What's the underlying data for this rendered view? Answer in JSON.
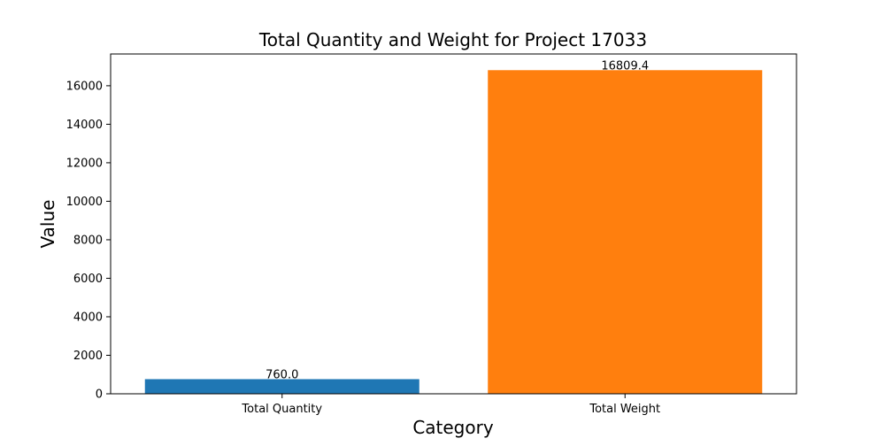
{
  "chart_data": {
    "type": "bar",
    "title": "Total Quantity and Weight for Project 17033",
    "xlabel": "Category",
    "ylabel": "Value",
    "categories": [
      "Total Quantity",
      "Total Weight"
    ],
    "values": [
      760.0,
      16809.4
    ],
    "data_labels": [
      "760.0",
      "16809.4"
    ],
    "bar_colors": [
      "#1f77b4",
      "#ff7f0e"
    ],
    "ylim": [
      0,
      17650
    ],
    "yticks": [
      0,
      2000,
      4000,
      6000,
      8000,
      10000,
      12000,
      14000,
      16000
    ],
    "grid": false,
    "legend": "none"
  }
}
